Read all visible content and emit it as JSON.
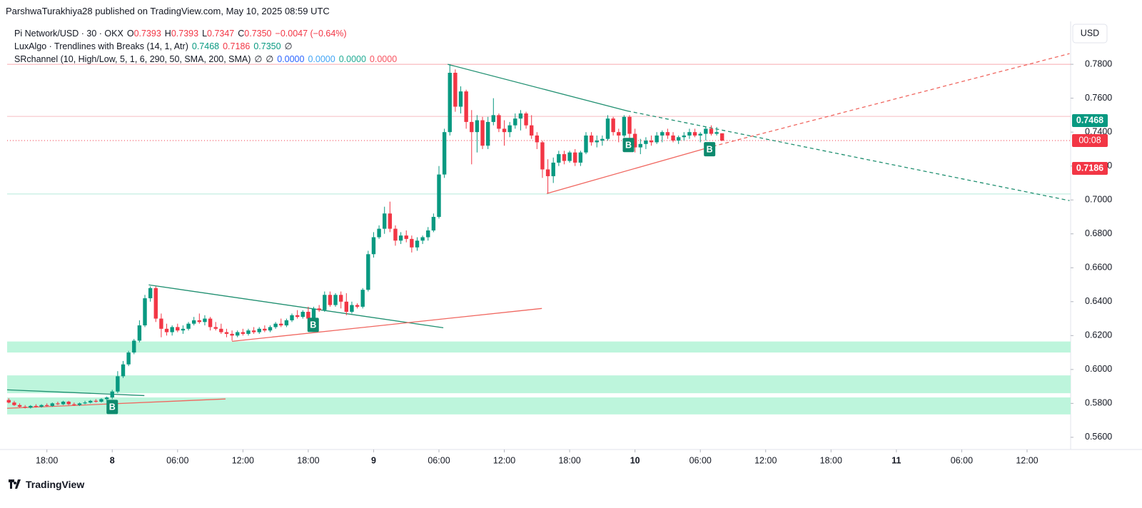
{
  "header": {
    "publisher_line": "ParshwaTurakhiya28 published on TradingView.com, May 10, 2025 08:59 UTC"
  },
  "chart_data": {
    "type": "candlestick",
    "currency": "USD",
    "legend_lines": [
      [
        {
          "text": "Pi Network/USD · 30 · OKX",
          "color": "#131722"
        },
        {
          "text": "O",
          "color": "#131722"
        },
        {
          "text": "0.7393",
          "color": "#f23645"
        },
        {
          "text": "H",
          "color": "#131722"
        },
        {
          "text": "0.7393",
          "color": "#f23645"
        },
        {
          "text": "L",
          "color": "#131722"
        },
        {
          "text": "0.7347",
          "color": "#f23645"
        },
        {
          "text": "C",
          "color": "#131722"
        },
        {
          "text": "0.7350",
          "color": "#f23645"
        },
        {
          "text": "−0.0047 (−0.64%)",
          "color": "#f23645"
        }
      ],
      [
        {
          "text": "LuxAlgo · Trendlines with Breaks (14, 1, Atr)",
          "color": "#131722"
        },
        {
          "text": "0.7468",
          "color": "#089981"
        },
        {
          "text": "0.7186",
          "color": "#f23645"
        },
        {
          "text": "0.7350",
          "color": "#089981"
        },
        {
          "text": "∅",
          "color": "#131722"
        }
      ],
      [
        {
          "text": "SRchannel (10, High/Low, 5, 1, 6, 290, 50, SMA, 200, SMA)",
          "color": "#131722"
        },
        {
          "text": "∅",
          "color": "#131722"
        },
        {
          "text": "∅",
          "color": "#131722"
        },
        {
          "text": "0.0000",
          "color": "#2962ff"
        },
        {
          "text": "0.0000",
          "color": "#42a5f5"
        },
        {
          "text": "0.0000",
          "color": "#22ab94"
        },
        {
          "text": "0.0000",
          "color": "#f7525f"
        }
      ]
    ],
    "up_color": "#089981",
    "down_color": "#f23645",
    "candles": [
      [
        0.582,
        0.583,
        0.58,
        0.5805
      ],
      [
        0.5805,
        0.5815,
        0.5785,
        0.579
      ],
      [
        0.579,
        0.58,
        0.5775,
        0.578
      ],
      [
        0.578,
        0.579,
        0.577,
        0.5775
      ],
      [
        0.5775,
        0.579,
        0.577,
        0.5785
      ],
      [
        0.5785,
        0.5795,
        0.5775,
        0.578
      ],
      [
        0.578,
        0.5795,
        0.5775,
        0.579
      ],
      [
        0.579,
        0.58,
        0.578,
        0.5785
      ],
      [
        0.5785,
        0.5805,
        0.578,
        0.58
      ],
      [
        0.58,
        0.581,
        0.579,
        0.5795
      ],
      [
        0.5795,
        0.5815,
        0.579,
        0.581
      ],
      [
        0.581,
        0.5815,
        0.579,
        0.5795
      ],
      [
        0.5795,
        0.5805,
        0.5785,
        0.579
      ],
      [
        0.579,
        0.5805,
        0.5785,
        0.58
      ],
      [
        0.58,
        0.5815,
        0.5795,
        0.5805
      ],
      [
        0.5805,
        0.582,
        0.58,
        0.5815
      ],
      [
        0.5815,
        0.5825,
        0.5805,
        0.581
      ],
      [
        0.581,
        0.583,
        0.5805,
        0.5825
      ],
      [
        0.5825,
        0.584,
        0.5815,
        0.5835
      ],
      [
        0.5835,
        0.588,
        0.5825,
        0.587
      ],
      [
        0.587,
        0.599,
        0.586,
        0.596
      ],
      [
        0.596,
        0.605,
        0.595,
        0.603
      ],
      [
        0.603,
        0.611,
        0.602,
        0.61
      ],
      [
        0.61,
        0.618,
        0.609,
        0.617
      ],
      [
        0.617,
        0.629,
        0.616,
        0.626
      ],
      [
        0.626,
        0.644,
        0.625,
        0.642
      ],
      [
        0.642,
        0.649,
        0.64,
        0.648
      ],
      [
        0.648,
        0.649,
        0.628,
        0.63
      ],
      [
        0.63,
        0.633,
        0.619,
        0.624
      ],
      [
        0.624,
        0.627,
        0.62,
        0.622
      ],
      [
        0.622,
        0.626,
        0.62,
        0.625
      ],
      [
        0.625,
        0.627,
        0.622,
        0.623
      ],
      [
        0.623,
        0.626,
        0.621,
        0.624
      ],
      [
        0.624,
        0.628,
        0.623,
        0.627
      ],
      [
        0.627,
        0.631,
        0.626,
        0.629
      ],
      [
        0.629,
        0.633,
        0.627,
        0.628
      ],
      [
        0.628,
        0.632,
        0.626,
        0.63
      ],
      [
        0.63,
        0.631,
        0.623,
        0.625
      ],
      [
        0.625,
        0.628,
        0.623,
        0.624
      ],
      [
        0.624,
        0.627,
        0.621,
        0.622
      ],
      [
        0.622,
        0.624,
        0.619,
        0.621
      ],
      [
        0.621,
        0.623,
        0.617,
        0.62
      ],
      [
        0.62,
        0.623,
        0.619,
        0.622
      ],
      [
        0.622,
        0.624,
        0.62,
        0.621
      ],
      [
        0.621,
        0.624,
        0.62,
        0.623
      ],
      [
        0.623,
        0.625,
        0.621,
        0.622
      ],
      [
        0.622,
        0.625,
        0.621,
        0.624
      ],
      [
        0.624,
        0.626,
        0.622,
        0.623
      ],
      [
        0.623,
        0.626,
        0.622,
        0.625
      ],
      [
        0.625,
        0.628,
        0.624,
        0.627
      ],
      [
        0.627,
        0.63,
        0.625,
        0.626
      ],
      [
        0.626,
        0.63,
        0.625,
        0.629
      ],
      [
        0.629,
        0.633,
        0.628,
        0.632
      ],
      [
        0.632,
        0.635,
        0.63,
        0.631
      ],
      [
        0.631,
        0.635,
        0.63,
        0.634
      ],
      [
        0.634,
        0.637,
        0.628,
        0.63
      ],
      [
        0.63,
        0.637,
        0.629,
        0.636
      ],
      [
        0.636,
        0.638,
        0.634,
        0.635
      ],
      [
        0.635,
        0.646,
        0.634,
        0.644
      ],
      [
        0.644,
        0.646,
        0.637,
        0.638
      ],
      [
        0.638,
        0.645,
        0.637,
        0.644
      ],
      [
        0.644,
        0.646,
        0.636,
        0.64
      ],
      [
        0.64,
        0.645,
        0.632,
        0.634
      ],
      [
        0.634,
        0.64,
        0.633,
        0.638
      ],
      [
        0.638,
        0.639,
        0.636,
        0.637
      ],
      [
        0.637,
        0.648,
        0.636,
        0.647
      ],
      [
        0.647,
        0.67,
        0.646,
        0.668
      ],
      [
        0.668,
        0.681,
        0.666,
        0.678
      ],
      [
        0.678,
        0.685,
        0.677,
        0.683
      ],
      [
        0.683,
        0.696,
        0.68,
        0.692
      ],
      [
        0.692,
        0.699,
        0.681,
        0.683
      ],
      [
        0.683,
        0.685,
        0.673,
        0.676
      ],
      [
        0.676,
        0.681,
        0.674,
        0.679
      ],
      [
        0.679,
        0.682,
        0.675,
        0.677
      ],
      [
        0.677,
        0.679,
        0.669,
        0.672
      ],
      [
        0.672,
        0.678,
        0.67,
        0.676
      ],
      [
        0.676,
        0.679,
        0.674,
        0.678
      ],
      [
        0.678,
        0.684,
        0.676,
        0.682
      ],
      [
        0.682,
        0.692,
        0.681,
        0.69
      ],
      [
        0.69,
        0.72,
        0.689,
        0.715
      ],
      [
        0.715,
        0.742,
        0.713,
        0.74
      ],
      [
        0.74,
        0.78,
        0.738,
        0.775
      ],
      [
        0.775,
        0.777,
        0.752,
        0.755
      ],
      [
        0.755,
        0.767,
        0.751,
        0.764
      ],
      [
        0.764,
        0.765,
        0.742,
        0.746
      ],
      [
        0.746,
        0.753,
        0.721,
        0.74
      ],
      [
        0.74,
        0.75,
        0.728,
        0.747
      ],
      [
        0.747,
        0.749,
        0.73,
        0.732
      ],
      [
        0.732,
        0.749,
        0.73,
        0.746
      ],
      [
        0.746,
        0.76,
        0.744,
        0.75
      ],
      [
        0.75,
        0.751,
        0.74,
        0.742
      ],
      [
        0.742,
        0.747,
        0.732,
        0.74
      ],
      [
        0.74,
        0.746,
        0.737,
        0.744
      ],
      [
        0.744,
        0.751,
        0.742,
        0.748
      ],
      [
        0.748,
        0.753,
        0.741,
        0.751
      ],
      [
        0.751,
        0.752,
        0.742,
        0.744
      ],
      [
        0.744,
        0.75,
        0.736,
        0.738
      ],
      [
        0.738,
        0.74,
        0.73,
        0.734
      ],
      [
        0.734,
        0.735,
        0.713,
        0.718
      ],
      [
        0.718,
        0.724,
        0.704,
        0.714
      ],
      [
        0.714,
        0.725,
        0.71,
        0.722
      ],
      [
        0.722,
        0.729,
        0.72,
        0.727
      ],
      [
        0.727,
        0.729,
        0.721,
        0.723
      ],
      [
        0.723,
        0.729,
        0.722,
        0.728
      ],
      [
        0.728,
        0.73,
        0.72,
        0.722
      ],
      [
        0.722,
        0.729,
        0.72,
        0.728
      ],
      [
        0.728,
        0.74,
        0.727,
        0.738
      ],
      [
        0.738,
        0.74,
        0.732,
        0.734
      ],
      [
        0.734,
        0.738,
        0.731,
        0.735
      ],
      [
        0.735,
        0.738,
        0.732,
        0.736
      ],
      [
        0.736,
        0.75,
        0.735,
        0.748
      ],
      [
        0.748,
        0.749,
        0.738,
        0.74
      ],
      [
        0.74,
        0.742,
        0.734,
        0.738
      ],
      [
        0.738,
        0.75,
        0.737,
        0.749
      ],
      [
        0.749,
        0.75,
        0.736,
        0.739
      ],
      [
        0.739,
        0.742,
        0.728,
        0.731
      ],
      [
        0.731,
        0.736,
        0.727,
        0.733
      ],
      [
        0.733,
        0.737,
        0.73,
        0.735
      ],
      [
        0.735,
        0.738,
        0.732,
        0.734
      ],
      [
        0.734,
        0.74,
        0.733,
        0.738
      ],
      [
        0.738,
        0.741,
        0.734,
        0.74
      ],
      [
        0.74,
        0.742,
        0.736,
        0.738
      ],
      [
        0.738,
        0.74,
        0.734,
        0.735
      ],
      [
        0.735,
        0.738,
        0.733,
        0.737
      ],
      [
        0.737,
        0.74,
        0.735,
        0.738
      ],
      [
        0.738,
        0.742,
        0.736,
        0.74
      ],
      [
        0.74,
        0.742,
        0.737,
        0.738
      ],
      [
        0.738,
        0.74,
        0.734,
        0.739
      ],
      [
        0.739,
        0.743,
        0.735,
        0.742
      ],
      [
        0.742,
        0.744,
        0.738,
        0.739
      ],
      [
        0.739,
        0.743,
        0.738,
        0.74
      ],
      [
        0.7393,
        0.7393,
        0.7347,
        0.735
      ]
    ],
    "xlim": [
      -0.3,
      195
    ],
    "xticks": [
      {
        "value": 7,
        "label": "18:00"
      },
      {
        "value": 19,
        "label": "8"
      },
      {
        "value": 31,
        "label": "06:00"
      },
      {
        "value": 43,
        "label": "12:00"
      },
      {
        "value": 55,
        "label": "18:00"
      },
      {
        "value": 67,
        "label": "9"
      },
      {
        "value": 79,
        "label": "06:00"
      },
      {
        "value": 91,
        "label": "12:00"
      },
      {
        "value": 103,
        "label": "18:00"
      },
      {
        "value": 115,
        "label": "10"
      },
      {
        "value": 127,
        "label": "06:00"
      },
      {
        "value": 139,
        "label": "12:00"
      },
      {
        "value": 151,
        "label": "18:00"
      },
      {
        "value": 163,
        "label": "11"
      },
      {
        "value": 175,
        "label": "06:00"
      },
      {
        "value": 187,
        "label": "12:00"
      }
    ],
    "ylim": [
      0.5528,
      0.8053
    ],
    "yticks": [
      {
        "value": 0.56,
        "label": "0.5600"
      },
      {
        "value": 0.58,
        "label": "0.5800"
      },
      {
        "value": 0.6,
        "label": "0.6000"
      },
      {
        "value": 0.62,
        "label": "0.6200"
      },
      {
        "value": 0.64,
        "label": "0.6400"
      },
      {
        "value": 0.66,
        "label": "0.6600"
      },
      {
        "value": 0.68,
        "label": "0.6800"
      },
      {
        "value": 0.7,
        "label": "0.7000"
      },
      {
        "value": 0.72,
        "label": "0.7200"
      },
      {
        "value": 0.74,
        "label": "0.7400"
      },
      {
        "value": 0.76,
        "label": "0.7600"
      },
      {
        "value": 0.78,
        "label": "0.7800"
      }
    ],
    "grid": false,
    "zones": [
      {
        "range": [
          0.61,
          0.6165
        ],
        "color": "#bdf5dc"
      },
      {
        "range": [
          0.586,
          0.5965
        ],
        "color": "#bdf5dc"
      },
      {
        "range": [
          0.5735,
          0.5835
        ],
        "color": "#bdf5dc"
      }
    ],
    "hlines": [
      {
        "value": 0.78,
        "color": "#f7a9ae",
        "dashed": false
      },
      {
        "value": 0.7493,
        "color": "#f7bcc0",
        "dashed": false
      },
      {
        "value": 0.735,
        "color": "#f23645",
        "dashed": true
      },
      {
        "value": 0.7035,
        "color": "#b4eadb",
        "dashed": false
      }
    ],
    "trendlines": [
      {
        "points": [
          [
            25.7,
            0.6499
          ],
          [
            79.8,
            0.6246
          ]
        ],
        "color": "#1f8f70",
        "dashed": false
      },
      {
        "points": [
          [
            41,
            0.6166
          ],
          [
            97.9,
            0.636
          ]
        ],
        "color": "#f0665f",
        "dashed": false
      },
      {
        "points": [
          [
            -0.3,
            0.588
          ],
          [
            24.9,
            0.5846
          ]
        ],
        "color": "#1f8f70",
        "dashed": false
      },
      {
        "points": [
          [
            -0.3,
            0.5771
          ],
          [
            39.8,
            0.5826
          ]
        ],
        "color": "#f0665f",
        "dashed": false
      },
      {
        "points": [
          [
            80.6,
            0.78
          ],
          [
            113.6,
            0.7525
          ]
        ],
        "color": "#1f8f70",
        "dashed": false
      },
      {
        "points": [
          [
            113.6,
            0.7525
          ],
          [
            194.8,
            0.6996
          ]
        ],
        "color": "#1f8f70",
        "dashed": true
      },
      {
        "points": [
          [
            98.8,
            0.7038
          ],
          [
            129.3,
            0.7316
          ]
        ],
        "color": "#f0665f",
        "dashed": false
      },
      {
        "points": [
          [
            129.3,
            0.7316
          ],
          [
            194.8,
            0.7863
          ]
        ],
        "color": "#f0665f",
        "dashed": true
      }
    ],
    "annotations": [
      {
        "x": 19,
        "y": 0.5779,
        "label": "B"
      },
      {
        "x": 55.9,
        "y": 0.6263,
        "label": "B"
      },
      {
        "x": 113.8,
        "y": 0.7324,
        "label": "B"
      },
      {
        "x": 128.7,
        "y": 0.7299,
        "label": "B"
      }
    ],
    "price_tags": [
      {
        "value": 0.7468,
        "color": "#089981"
      },
      {
        "value": 0.7186,
        "color": "#f23645"
      }
    ],
    "countdown": {
      "label": "00:08",
      "color": "#f23645"
    }
  },
  "footer": {
    "brand": "TradingView"
  }
}
